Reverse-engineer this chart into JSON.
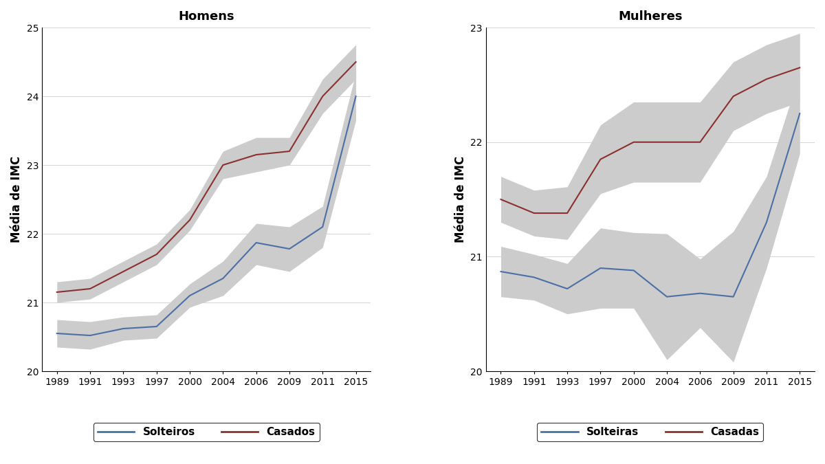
{
  "years": [
    "1989",
    "1991",
    "1993",
    "1997",
    "2000",
    "2004",
    "2006",
    "2009",
    "2011",
    "2015"
  ],
  "homens_solteiros": [
    20.55,
    20.52,
    20.62,
    20.65,
    21.1,
    21.35,
    21.87,
    21.78,
    22.1,
    24.0
  ],
  "homens_solteiros_lo": [
    20.35,
    20.32,
    20.45,
    20.48,
    20.93,
    21.1,
    21.55,
    21.45,
    21.8,
    23.65
  ],
  "homens_solteiros_hi": [
    20.75,
    20.72,
    20.79,
    20.82,
    21.27,
    21.6,
    22.15,
    22.1,
    22.4,
    24.35
  ],
  "homens_casados": [
    21.15,
    21.2,
    21.45,
    21.7,
    22.2,
    23.0,
    23.15,
    23.2,
    24.0,
    24.5
  ],
  "homens_casados_lo": [
    21.0,
    21.05,
    21.3,
    21.55,
    22.05,
    22.8,
    22.9,
    23.0,
    23.75,
    24.25
  ],
  "homens_casados_hi": [
    21.3,
    21.35,
    21.6,
    21.85,
    22.35,
    23.2,
    23.4,
    23.4,
    24.25,
    24.75
  ],
  "mulheres_solteiras": [
    20.87,
    20.82,
    20.72,
    20.9,
    20.88,
    20.65,
    20.68,
    20.65,
    21.3,
    22.25
  ],
  "mulheres_solteiras_lo": [
    20.65,
    20.62,
    20.5,
    20.55,
    20.55,
    20.1,
    20.38,
    20.08,
    20.9,
    21.9
  ],
  "mulheres_solteiras_hi": [
    21.09,
    21.02,
    20.94,
    21.25,
    21.21,
    21.2,
    20.98,
    21.22,
    21.7,
    22.6
  ],
  "mulheres_casadas": [
    21.5,
    21.38,
    21.38,
    21.85,
    22.0,
    22.0,
    22.0,
    22.4,
    22.55,
    22.65
  ],
  "mulheres_casadas_lo": [
    21.3,
    21.18,
    21.15,
    21.55,
    21.65,
    21.65,
    21.65,
    22.1,
    22.25,
    22.35
  ],
  "mulheres_casadas_hi": [
    21.7,
    21.58,
    21.61,
    22.15,
    22.35,
    22.35,
    22.35,
    22.7,
    22.85,
    22.95
  ],
  "color_solteiro": "#4c6fa5",
  "color_casado": "#8b3030",
  "color_ci": "#cccccc",
  "ylabel": "Média de IMC",
  "title_left": "Homens",
  "title_right": "Mulheres",
  "legend_solteiros": "Solteiros",
  "legend_casados": "Casados",
  "legend_solteiras": "Solteiras",
  "legend_casadas": "Casadas",
  "ylim_left": [
    20,
    25
  ],
  "ylim_right": [
    20,
    23
  ],
  "yticks_left": [
    20,
    21,
    22,
    23,
    24,
    25
  ],
  "yticks_right": [
    20,
    21,
    22,
    23
  ]
}
